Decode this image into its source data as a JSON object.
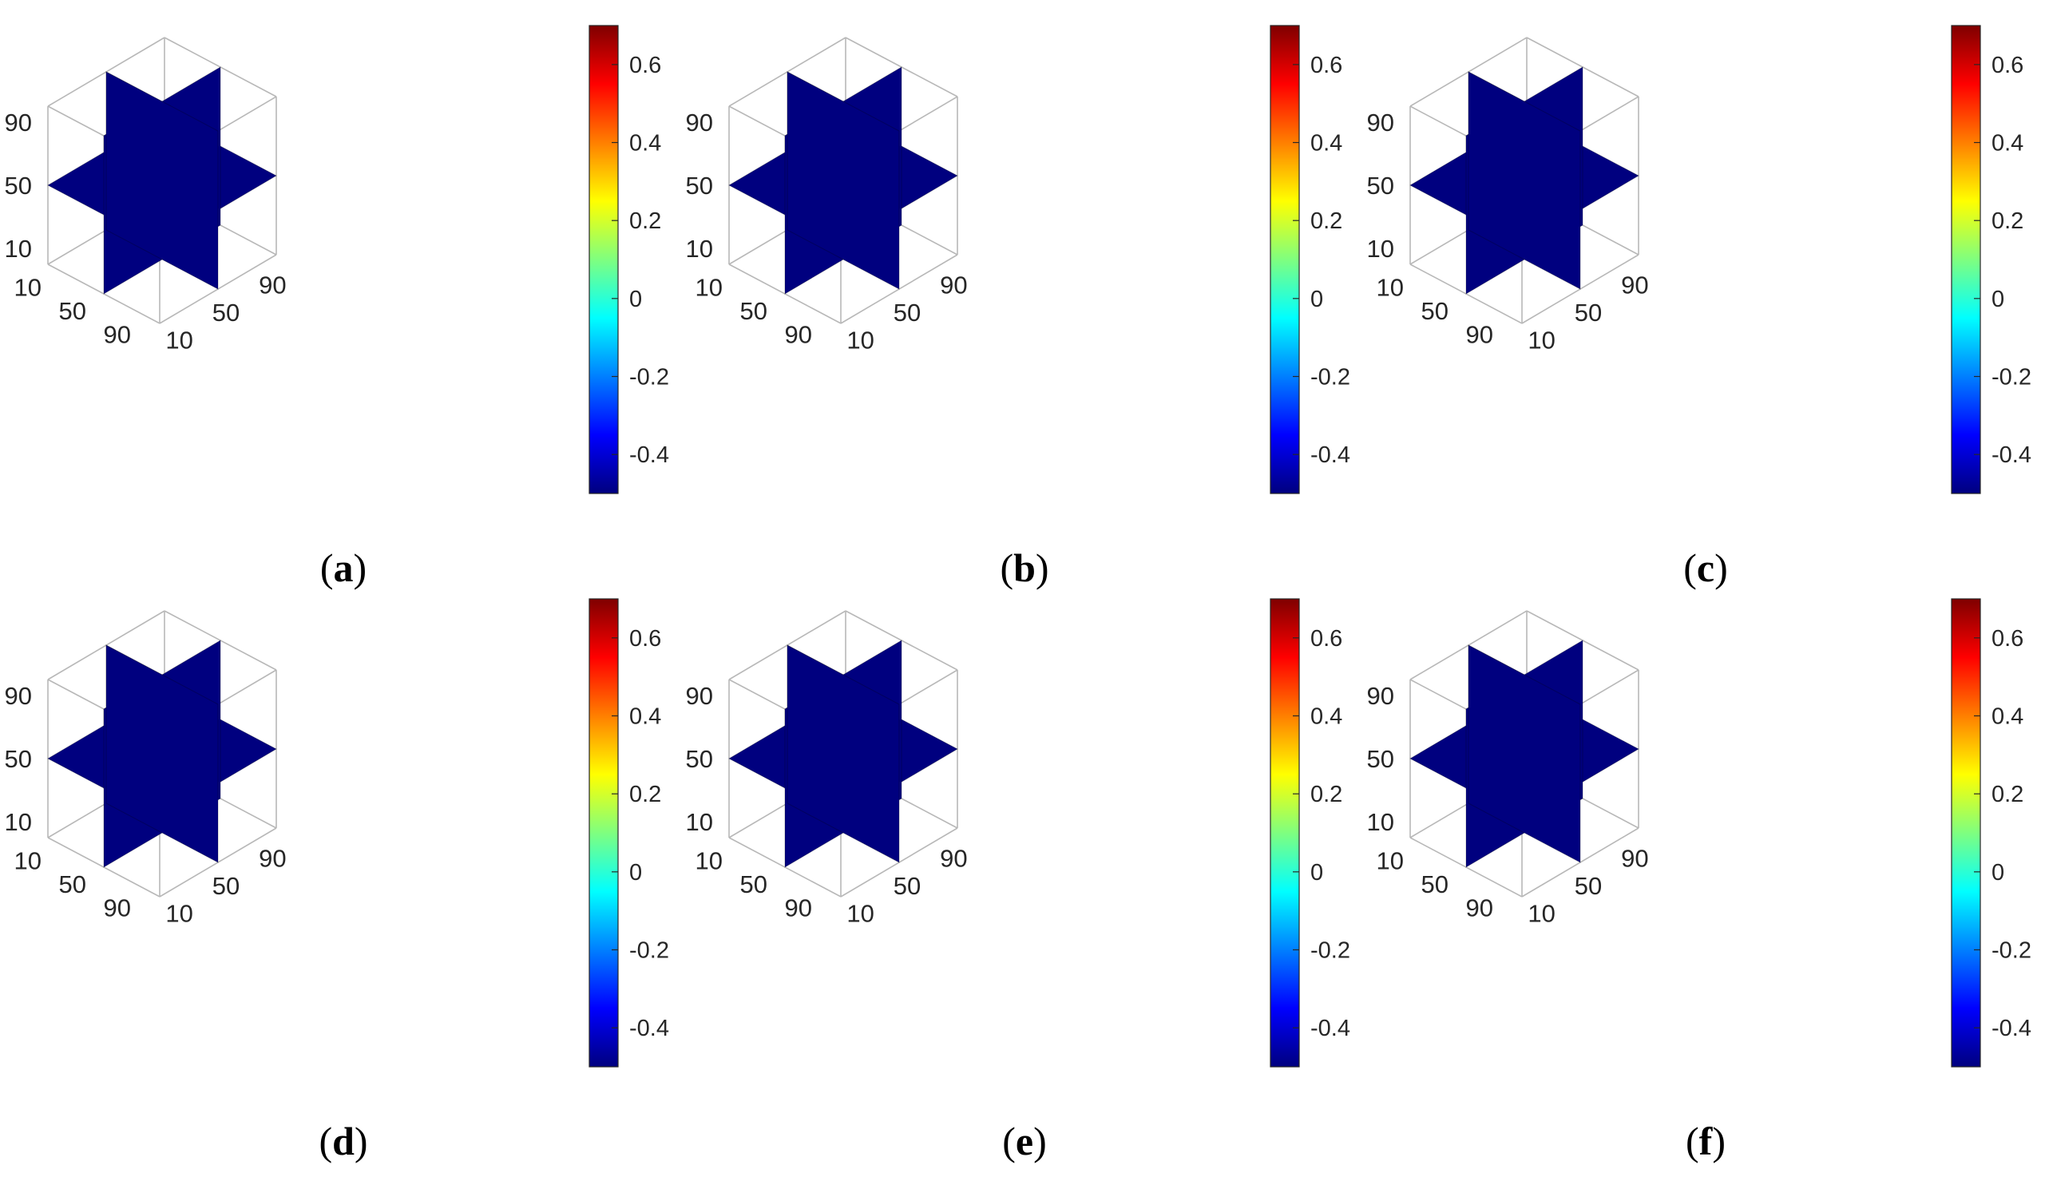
{
  "figure": {
    "panels": [
      {
        "id": "a",
        "caption_letter": "a",
        "pattern": "spots"
      },
      {
        "id": "b",
        "caption_letter": "b",
        "pattern": "mixed"
      },
      {
        "id": "c",
        "caption_letter": "c",
        "pattern": "stripes"
      },
      {
        "id": "d",
        "caption_letter": "d",
        "pattern": "stripes"
      },
      {
        "id": "e",
        "caption_letter": "e",
        "pattern": "stripes"
      },
      {
        "id": "f",
        "caption_letter": "f",
        "pattern": "stripes"
      }
    ]
  },
  "chart_data": {
    "type": "heatmap",
    "layout": "2x3 grid of 3D orthogonal slice plots",
    "caption_open": "(",
    "caption_close": ")",
    "x_ticks": [
      "10",
      "50",
      "90"
    ],
    "y_ticks": [
      "10",
      "50",
      "90"
    ],
    "z_ticks": [
      "10",
      "50",
      "90"
    ],
    "axis_range": [
      0,
      100
    ],
    "slice_positions": {
      "x": 50,
      "y": 50,
      "z": 50
    },
    "colorbar": {
      "colormap": "jet",
      "range": [
        -0.5,
        0.7
      ],
      "ticks": [
        "-0.4",
        "-0.2",
        "0",
        "0.2",
        "0.4",
        "0.6"
      ],
      "tick_values": [
        -0.4,
        -0.2,
        0,
        0.2,
        0.4,
        0.6
      ],
      "colors": [
        "#00007f",
        "#0000ff",
        "#007fff",
        "#00ffff",
        "#7fff7f",
        "#ffff00",
        "#ff7f00",
        "#ff0000",
        "#7f0000"
      ]
    }
  }
}
